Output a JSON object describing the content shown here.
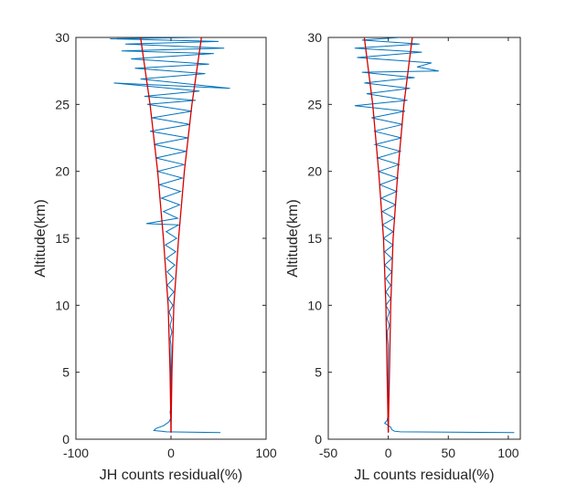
{
  "chart_data": [
    {
      "type": "line",
      "xlabel": "JH counts residual(%)",
      "ylabel": "Altitude(km)",
      "xlim": [
        -100,
        100
      ],
      "ylim": [
        0,
        30
      ],
      "xticks": [
        -100,
        0,
        100
      ],
      "yticks": [
        0,
        5,
        10,
        15,
        20,
        25,
        30
      ],
      "grid": false,
      "series": [
        {
          "role": "residual",
          "color": "#0072BD",
          "points": [
            [
              52,
              0.5
            ],
            [
              -5,
              0.55
            ],
            [
              -10,
              0.6
            ],
            [
              -18,
              0.65
            ],
            [
              -16,
              0.8
            ],
            [
              -8,
              1.0
            ],
            [
              -2,
              1.3
            ],
            [
              0,
              1.6
            ],
            [
              -1,
              2.0
            ],
            [
              0,
              2.5
            ],
            [
              0,
              3.0
            ],
            [
              0,
              4.0
            ],
            [
              0,
              5.0
            ],
            [
              0,
              6.0
            ],
            [
              0,
              7.0
            ],
            [
              -1,
              7.5
            ],
            [
              1,
              8.0
            ],
            [
              -1,
              8.5
            ],
            [
              1,
              9.0
            ],
            [
              -2,
              9.5
            ],
            [
              2,
              10.0
            ],
            [
              -3,
              10.5
            ],
            [
              3,
              11.0
            ],
            [
              -4,
              11.5
            ],
            [
              3,
              12.0
            ],
            [
              -4,
              12.5
            ],
            [
              4,
              13.0
            ],
            [
              -5,
              13.5
            ],
            [
              5,
              14.0
            ],
            [
              -6,
              14.5
            ],
            [
              6,
              15.0
            ],
            [
              -5,
              15.5
            ],
            [
              8,
              16.0
            ],
            [
              -26,
              16.1
            ],
            [
              7,
              16.5
            ],
            [
              -8,
              17.0
            ],
            [
              9,
              17.5
            ],
            [
              -10,
              18.0
            ],
            [
              10,
              18.5
            ],
            [
              -12,
              19.0
            ],
            [
              12,
              19.5
            ],
            [
              -14,
              20.0
            ],
            [
              14,
              20.5
            ],
            [
              -16,
              21.0
            ],
            [
              16,
              21.5
            ],
            [
              -18,
              22.0
            ],
            [
              18,
              22.5
            ],
            [
              -22,
              23.0
            ],
            [
              20,
              23.5
            ],
            [
              -20,
              24.0
            ],
            [
              22,
              24.5
            ],
            [
              -25,
              25.0
            ],
            [
              26,
              25.3
            ],
            [
              -28,
              25.6
            ],
            [
              30,
              26.0
            ],
            [
              -60,
              26.6
            ],
            [
              62,
              26.2
            ],
            [
              -32,
              26.9
            ],
            [
              36,
              27.3
            ],
            [
              -38,
              27.7
            ],
            [
              40,
              28.0
            ],
            [
              -42,
              28.4
            ],
            [
              45,
              28.8
            ],
            [
              -52,
              29.0
            ],
            [
              56,
              29.2
            ],
            [
              -48,
              29.5
            ],
            [
              50,
              29.7
            ],
            [
              -64,
              29.9
            ],
            [
              30,
              30.0
            ]
          ]
        },
        {
          "role": "envelope",
          "color": "#D50000",
          "points": [
            [
              0,
              0.5
            ],
            [
              1,
              5
            ],
            [
              3,
              10
            ],
            [
              8,
              15
            ],
            [
              14,
              20
            ],
            [
              22,
              25
            ],
            [
              32,
              30
            ]
          ]
        },
        {
          "role": "envelope",
          "color": "#D50000",
          "points": [
            [
              0,
              0.5
            ],
            [
              -1,
              5
            ],
            [
              -3,
              10
            ],
            [
              -8,
              15
            ],
            [
              -14,
              20
            ],
            [
              -22,
              25
            ],
            [
              -32,
              30
            ]
          ]
        }
      ]
    },
    {
      "type": "line",
      "xlabel": "JL counts residual(%)",
      "ylabel": "Altitude(km)",
      "xlim": [
        -50,
        110
      ],
      "ylim": [
        0,
        30
      ],
      "xticks": [
        -50,
        0,
        50,
        100
      ],
      "yticks": [
        0,
        5,
        10,
        15,
        20,
        25,
        30
      ],
      "grid": false,
      "series": [
        {
          "role": "residual",
          "color": "#0072BD",
          "points": [
            [
              105,
              0.5
            ],
            [
              10,
              0.55
            ],
            [
              5,
              0.6
            ],
            [
              3,
              0.7
            ],
            [
              2,
              0.9
            ],
            [
              -3,
              1.2
            ],
            [
              -1,
              1.4
            ],
            [
              0,
              1.8
            ],
            [
              0,
              2.5
            ],
            [
              0,
              3.0
            ],
            [
              0,
              4.0
            ],
            [
              0,
              5.0
            ],
            [
              0,
              6.0
            ],
            [
              0,
              7.0
            ],
            [
              -1,
              8.0
            ],
            [
              1,
              8.5
            ],
            [
              -1,
              9.0
            ],
            [
              1,
              9.5
            ],
            [
              -2,
              10.0
            ],
            [
              2,
              10.5
            ],
            [
              -2,
              11.0
            ],
            [
              2,
              11.5
            ],
            [
              -2,
              12.0
            ],
            [
              3,
              12.5
            ],
            [
              -3,
              13.0
            ],
            [
              3,
              13.5
            ],
            [
              -3,
              14.0
            ],
            [
              4,
              14.5
            ],
            [
              -4,
              15.0
            ],
            [
              4,
              15.5
            ],
            [
              -5,
              16.0
            ],
            [
              5,
              16.5
            ],
            [
              -5,
              17.0
            ],
            [
              6,
              17.5
            ],
            [
              -6,
              18.0
            ],
            [
              7,
              18.5
            ],
            [
              -7,
              19.0
            ],
            [
              8,
              19.5
            ],
            [
              -8,
              20.0
            ],
            [
              9,
              20.5
            ],
            [
              -9,
              21.0
            ],
            [
              10,
              21.5
            ],
            [
              -11,
              22.0
            ],
            [
              11,
              22.5
            ],
            [
              -12,
              23.0
            ],
            [
              12,
              23.5
            ],
            [
              -14,
              24.0
            ],
            [
              14,
              24.5
            ],
            [
              -28,
              24.9
            ],
            [
              16,
              25.3
            ],
            [
              -18,
              25.8
            ],
            [
              18,
              26.2
            ],
            [
              -20,
              26.6
            ],
            [
              22,
              27.0
            ],
            [
              -22,
              27.4
            ],
            [
              42,
              27.5
            ],
            [
              24,
              27.8
            ],
            [
              36,
              28.1
            ],
            [
              -26,
              28.5
            ],
            [
              28,
              28.9
            ],
            [
              -28,
              29.2
            ],
            [
              26,
              29.5
            ],
            [
              -22,
              29.8
            ],
            [
              10,
              30.0
            ]
          ]
        },
        {
          "role": "envelope",
          "color": "#D50000",
          "points": [
            [
              0,
              0.5
            ],
            [
              1,
              5
            ],
            [
              2,
              10
            ],
            [
              4,
              15
            ],
            [
              8,
              20
            ],
            [
              13,
              25
            ],
            [
              20,
              30
            ]
          ]
        },
        {
          "role": "envelope",
          "color": "#D50000",
          "points": [
            [
              0,
              0.5
            ],
            [
              -1,
              5
            ],
            [
              -2,
              10
            ],
            [
              -4,
              15
            ],
            [
              -8,
              20
            ],
            [
              -13,
              25
            ],
            [
              -20,
              30
            ]
          ]
        }
      ]
    }
  ]
}
